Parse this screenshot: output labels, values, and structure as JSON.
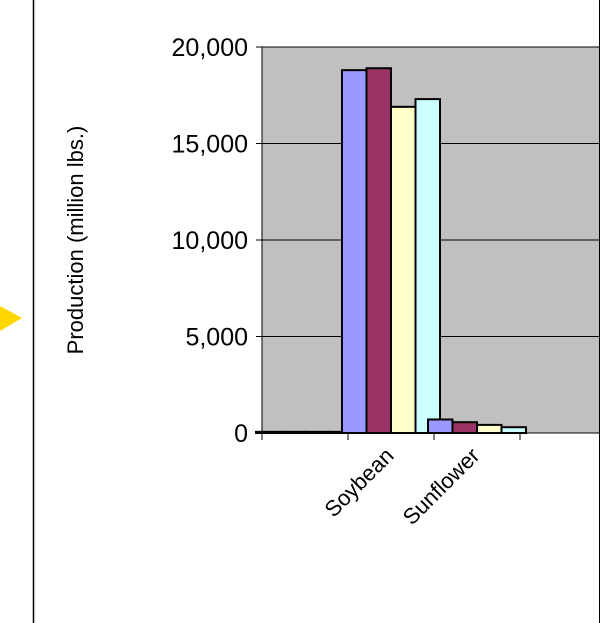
{
  "chart_data": {
    "type": "bar",
    "title": "",
    "xlabel": "",
    "ylabel": "Production (million lbs.)",
    "ylim": [
      0,
      20000
    ],
    "yticks": [
      0,
      5000,
      10000,
      15000,
      20000
    ],
    "ytick_labels": [
      "0",
      "5,000",
      "10,000",
      "15,000",
      "20,000"
    ],
    "grid": true,
    "legend": "none",
    "plot_background": "#c0c0c0",
    "categories": [
      "",
      "Soybean",
      "Sunflower"
    ],
    "series": [
      {
        "color": "#9999ff",
        "values": [
          60,
          18800,
          700
        ]
      },
      {
        "color": "#993366",
        "values": [
          60,
          18900,
          560
        ]
      },
      {
        "color": "#ffffcc",
        "values": [
          60,
          16900,
          420
        ]
      },
      {
        "color": "#ccffff",
        "values": [
          60,
          17300,
          300
        ]
      }
    ]
  },
  "decorations": {
    "arrow_color": "#ffd700"
  }
}
